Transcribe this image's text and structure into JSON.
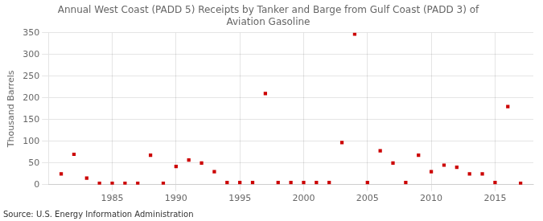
{
  "chart_data": {
    "type": "scatter",
    "title": "Annual West Coast (PADD 5) Receipts by Tanker and Barge from Gulf Coast (PADD 3) of\nAviation Gasoline",
    "ylabel": "Thousand Barrels",
    "annotations": [
      "Source: U.S. Energy Information Administration"
    ],
    "x": [
      1981,
      1982,
      1983,
      1984,
      1985,
      1986,
      1987,
      1988,
      1989,
      1990,
      1991,
      1992,
      1993,
      1994,
      1995,
      1996,
      1997,
      1998,
      1999,
      2000,
      2001,
      2002,
      2003,
      2004,
      2005,
      2006,
      2007,
      2008,
      2009,
      2010,
      2011,
      2012,
      2013,
      2014,
      2015,
      2016,
      2017
    ],
    "values": [
      25,
      70,
      15,
      3,
      3,
      3,
      3,
      68,
      3,
      42,
      57,
      50,
      30,
      5,
      5,
      5,
      210,
      5,
      5,
      5,
      5,
      5,
      97,
      347,
      5,
      78,
      50,
      5,
      68,
      30,
      45,
      40,
      25,
      25,
      5,
      180,
      3
    ],
    "color": "#cc0000",
    "marker": "square",
    "xlim": [
      1980,
      2018
    ],
    "ylim": [
      0,
      350
    ],
    "xticks": [
      1985,
      1990,
      1995,
      2000,
      2005,
      2010,
      2015
    ],
    "yticks": [
      0,
      50,
      100,
      150,
      200,
      250,
      300,
      350
    ],
    "grid": true
  }
}
